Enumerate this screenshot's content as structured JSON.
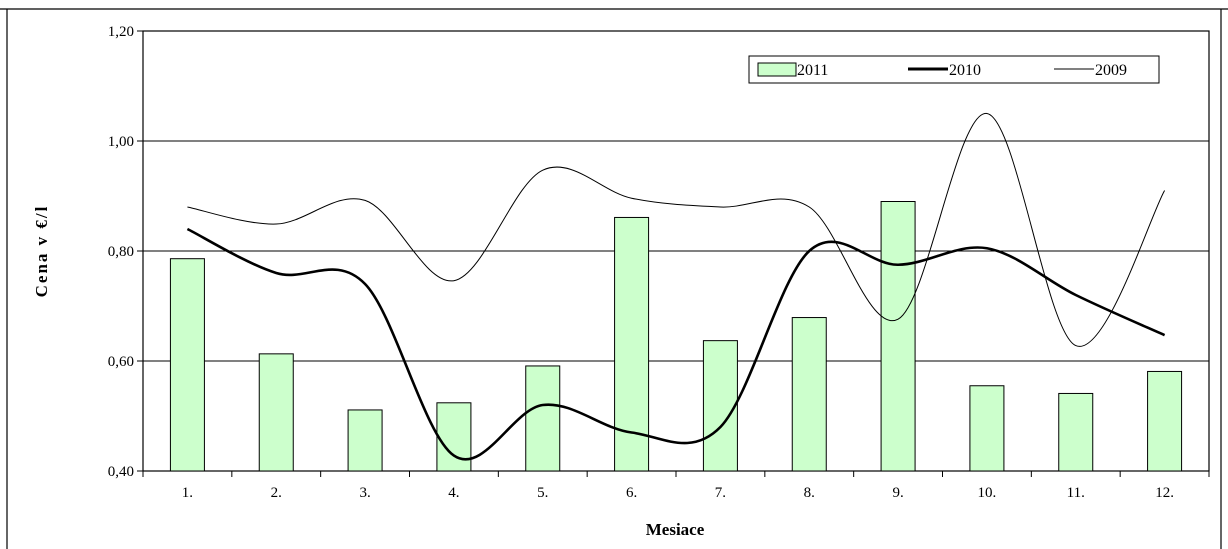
{
  "chart_data": {
    "type": "bar",
    "title": "",
    "xlabel": "Mesiace",
    "ylabel": "Cena v €/l",
    "categories": [
      "1.",
      "2.",
      "3.",
      "4.",
      "5.",
      "6.",
      "7.",
      "8.",
      "9.",
      "10.",
      "11.",
      "12."
    ],
    "ylim": [
      0.4,
      1.2
    ],
    "yticks": [
      "0,40",
      "0,60",
      "0,80",
      "1,00",
      "1,20"
    ],
    "ytick_values": [
      0.4,
      0.6,
      0.8,
      1.0,
      1.2
    ],
    "grid": true,
    "legend_position": "top-right",
    "series": [
      {
        "name": "2011",
        "type": "bar",
        "color": "#ccffcc",
        "values": [
          0.786,
          0.613,
          0.511,
          0.524,
          0.591,
          0.861,
          0.637,
          0.679,
          0.89,
          0.555,
          0.541,
          0.581
        ]
      },
      {
        "name": "2010",
        "type": "line",
        "color": "#000000",
        "smooth": true,
        "weight": "thick",
        "values": [
          0.84,
          0.76,
          0.74,
          0.428,
          0.52,
          0.47,
          0.48,
          0.8,
          0.775,
          0.805,
          0.72,
          0.647
        ]
      },
      {
        "name": "2009",
        "type": "line",
        "color": "#000000",
        "smooth": true,
        "weight": "thin",
        "values": [
          0.88,
          0.849,
          0.892,
          0.746,
          0.947,
          0.896,
          0.88,
          0.88,
          0.676,
          1.05,
          0.628,
          0.91
        ]
      }
    ]
  }
}
